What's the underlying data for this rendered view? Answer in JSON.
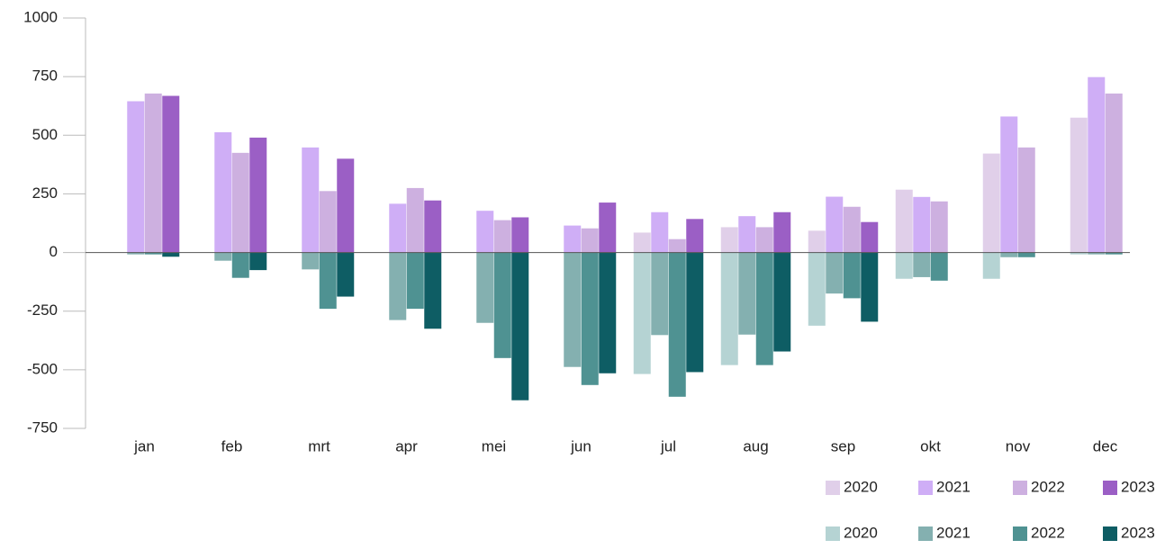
{
  "chart_data": {
    "type": "bar",
    "categories": [
      "jan",
      "feb",
      "mrt",
      "apr",
      "mei",
      "jun",
      "jul",
      "aug",
      "sep",
      "okt",
      "nov",
      "dec"
    ],
    "ylim": [
      -750,
      1000
    ],
    "yticks": [
      -750,
      -500,
      -250,
      0,
      250,
      500,
      750,
      1000
    ],
    "series": [
      {
        "name": "2020",
        "color": "#e0cfe9",
        "values": [
          null,
          null,
          null,
          null,
          null,
          null,
          85,
          108,
          93,
          268,
          422,
          575
        ]
      },
      {
        "name": "2021",
        "color": "#cfaef6",
        "values": [
          645,
          513,
          448,
          208,
          178,
          115,
          172,
          155,
          238,
          237,
          580,
          748
        ]
      },
      {
        "name": "2022",
        "color": "#cdb0e0",
        "values": [
          678,
          425,
          262,
          275,
          138,
          103,
          57,
          108,
          195,
          218,
          448,
          678
        ]
      },
      {
        "name": "2023",
        "color": "#9b5fc5",
        "values": [
          668,
          490,
          400,
          222,
          150,
          213,
          143,
          172,
          130,
          null,
          null,
          null
        ]
      },
      {
        "name": "2020",
        "color": "#b5d3d3",
        "values": [
          null,
          null,
          null,
          null,
          null,
          null,
          -518,
          -480,
          -312,
          -112,
          -112,
          -8
        ]
      },
      {
        "name": "2021",
        "color": "#84b0b0",
        "values": [
          -8,
          -35,
          -72,
          -288,
          -300,
          -488,
          -352,
          -350,
          -175,
          -105,
          -20,
          -8
        ]
      },
      {
        "name": "2022",
        "color": "#4f9292",
        "values": [
          -8,
          -108,
          -240,
          -240,
          -450,
          -565,
          -615,
          -480,
          -195,
          -120,
          -20,
          -8
        ]
      },
      {
        "name": "2023",
        "color": "#0e5d64",
        "values": [
          -18,
          -75,
          -188,
          -325,
          -630,
          -515,
          -510,
          -422,
          -295,
          null,
          null,
          null
        ]
      }
    ]
  }
}
